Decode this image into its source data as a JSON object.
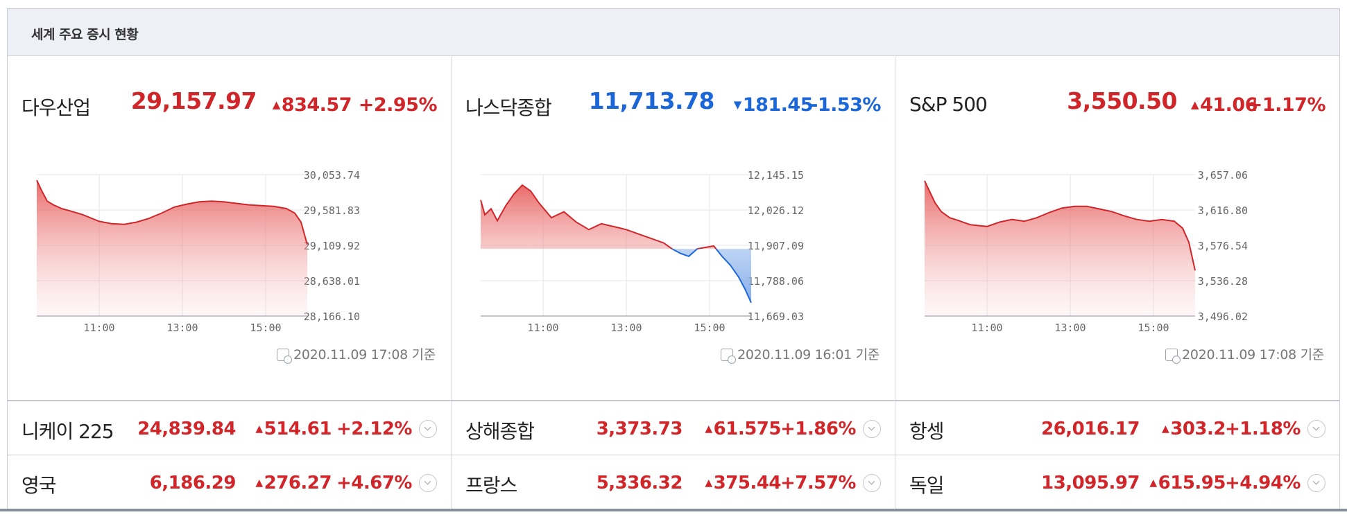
{
  "widget": {
    "title": "세계 주요 증시 현황"
  },
  "main_indices": [
    {
      "name": "다우산업",
      "price": "29,157.97",
      "direction": "up",
      "change": "834.57",
      "percent": "+2.95%",
      "stamp": "2020.11.09 17:08 기준"
    },
    {
      "name": "나스닥종합",
      "price": "11,713.78",
      "direction": "down",
      "change": "181.45",
      "percent": "-1.53%",
      "stamp": "2020.11.09 16:01 기준"
    },
    {
      "name": "S&P 500",
      "price": "3,550.50",
      "direction": "up",
      "change": "41.06",
      "percent": "+1.17%",
      "stamp": "2020.11.09 17:08 기준"
    }
  ],
  "other_indices": [
    {
      "name": "니케이 225",
      "price": "24,839.84",
      "direction": "up",
      "change": "514.61",
      "percent": "+2.12%"
    },
    {
      "name": "상해종합",
      "price": "3,373.73",
      "direction": "up",
      "change": "61.575",
      "percent": "+1.86%"
    },
    {
      "name": "항셍",
      "price": "26,016.17",
      "direction": "up",
      "change": "303.2",
      "percent": "+1.18%"
    },
    {
      "name": "영국",
      "price": "6,186.29",
      "direction": "up",
      "change": "276.27",
      "percent": "+4.67%"
    },
    {
      "name": "프랑스",
      "price": "5,336.32",
      "direction": "up",
      "change": "375.44",
      "percent": "+7.57%"
    },
    {
      "name": "독일",
      "price": "13,095.97",
      "direction": "up",
      "change": "615.95",
      "percent": "+4.94%"
    }
  ],
  "colors": {
    "up": "#d0262a",
    "down": "#1c67d8",
    "grid": "#e4e6ec"
  },
  "chart_data": [
    {
      "type": "area",
      "series_name": "다우산업",
      "x_ticks": [
        "11:00",
        "13:00",
        "15:00"
      ],
      "y_ticks": [
        "30,053.74",
        "29,581.83",
        "29,109.92",
        "28,638.01",
        "28,166.10"
      ],
      "ylim": [
        28166.1,
        30053.74
      ],
      "baseline": 28166.1,
      "x": [
        9.5,
        9.6,
        9.75,
        9.9,
        10.1,
        10.3,
        10.6,
        11.0,
        11.3,
        11.6,
        11.9,
        12.2,
        12.5,
        12.8,
        13.1,
        13.4,
        13.7,
        14.0,
        14.3,
        14.6,
        14.9,
        15.2,
        15.5,
        15.7,
        15.85,
        16.0
      ],
      "y": [
        29980,
        29860,
        29700,
        29650,
        29600,
        29570,
        29520,
        29430,
        29400,
        29390,
        29420,
        29470,
        29540,
        29620,
        29660,
        29690,
        29700,
        29690,
        29670,
        29650,
        29640,
        29630,
        29600,
        29540,
        29420,
        29120
      ]
    },
    {
      "type": "area",
      "series_name": "나스닥종합",
      "x_ticks": [
        "11:00",
        "13:00",
        "15:00"
      ],
      "y_ticks": [
        "12,145.15",
        "12,026.12",
        "11,907.09",
        "11,788.06",
        "11,669.03"
      ],
      "ylim": [
        11669.03,
        12145.15
      ],
      "baseline": 11895.23,
      "x": [
        9.5,
        9.6,
        9.75,
        9.9,
        10.1,
        10.3,
        10.5,
        10.7,
        10.9,
        11.2,
        11.5,
        11.8,
        12.1,
        12.4,
        12.7,
        13.0,
        13.3,
        13.6,
        13.9,
        14.1,
        14.3,
        14.5,
        14.7,
        14.9,
        15.1,
        15.3,
        15.5,
        15.7,
        15.85,
        16.0
      ],
      "y": [
        12060,
        12010,
        12030,
        11990,
        12040,
        12080,
        12110,
        12090,
        12050,
        12000,
        12020,
        11985,
        11960,
        11980,
        11970,
        11960,
        11945,
        11930,
        11915,
        11895,
        11880,
        11870,
        11895,
        11900,
        11905,
        11870,
        11840,
        11800,
        11760,
        11713.78
      ]
    },
    {
      "type": "area",
      "series_name": "S&P 500",
      "x_ticks": [
        "11:00",
        "13:00",
        "15:00"
      ],
      "y_ticks": [
        "3,657.06",
        "3,616.80",
        "3,576.54",
        "3,536.28",
        "3,496.02"
      ],
      "ylim": [
        3496.02,
        3657.06
      ],
      "baseline": 3496.02,
      "x": [
        9.5,
        9.6,
        9.75,
        9.9,
        10.1,
        10.3,
        10.6,
        11.0,
        11.3,
        11.6,
        11.9,
        12.2,
        12.5,
        12.8,
        13.1,
        13.4,
        13.7,
        14.0,
        14.3,
        14.6,
        14.9,
        15.2,
        15.5,
        15.7,
        15.85,
        16.0
      ],
      "y": [
        3650,
        3640,
        3625,
        3615,
        3608,
        3605,
        3600,
        3598,
        3603,
        3606,
        3604,
        3608,
        3614,
        3619,
        3621,
        3621,
        3618,
        3615,
        3610,
        3606,
        3604,
        3606,
        3604,
        3596,
        3580,
        3548
      ]
    }
  ]
}
